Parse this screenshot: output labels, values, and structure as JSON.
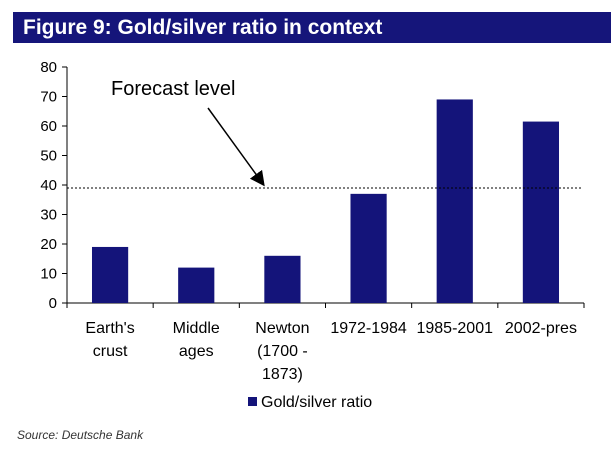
{
  "header": {
    "title": "Figure 9: Gold/silver ratio in context"
  },
  "chart_data": {
    "type": "bar",
    "title": "",
    "xlabel": "",
    "ylabel": "",
    "ylim": [
      0,
      80
    ],
    "yticks": [
      0,
      10,
      20,
      30,
      40,
      50,
      60,
      70,
      80
    ],
    "categories": [
      [
        "Earth's",
        "crust"
      ],
      [
        "Middle",
        "ages"
      ],
      [
        "Newton",
        "(1700 -",
        "1873)"
      ],
      [
        "1972-1984"
      ],
      [
        "1985-2001"
      ],
      [
        "2002-pres"
      ]
    ],
    "series": [
      {
        "name": "Gold/silver ratio",
        "values": [
          19,
          12,
          16,
          37,
          69,
          61.5
        ],
        "color": "#14147a"
      }
    ],
    "reference_line": {
      "value": 39,
      "style": "dotted"
    },
    "annotation": {
      "text": "Forecast level",
      "arrow_points_to": "reference_line"
    },
    "legend": {
      "position": "bottom-center"
    },
    "grid": false
  },
  "footer": {
    "source": "Source: Deutsche Bank"
  }
}
